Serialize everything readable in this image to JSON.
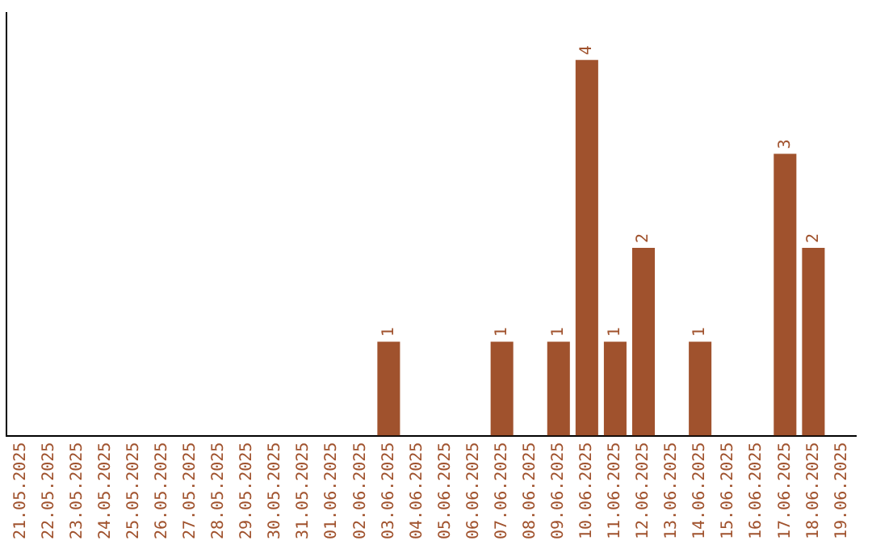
{
  "chart_data": {
    "type": "bar",
    "categories": [
      "21.05.2025",
      "22.05.2025",
      "23.05.2025",
      "24.05.2025",
      "25.05.2025",
      "26.05.2025",
      "27.05.2025",
      "28.05.2025",
      "29.05.2025",
      "30.05.2025",
      "31.05.2025",
      "01.06.2025",
      "02.06.2025",
      "03.06.2025",
      "04.06.2025",
      "05.06.2025",
      "06.06.2025",
      "07.06.2025",
      "08.06.2025",
      "09.06.2025",
      "10.06.2025",
      "11.06.2025",
      "12.06.2025",
      "13.06.2025",
      "14.06.2025",
      "15.06.2025",
      "16.06.2025",
      "17.06.2025",
      "18.06.2025",
      "19.06.2025"
    ],
    "values": [
      null,
      null,
      null,
      null,
      null,
      null,
      null,
      null,
      null,
      null,
      null,
      null,
      null,
      1,
      null,
      null,
      null,
      1,
      null,
      1,
      4,
      1,
      2,
      null,
      1,
      null,
      null,
      3,
      2,
      null
    ],
    "color": "#a0522d",
    "data_labels": true,
    "grid": false,
    "legend": false,
    "tick_labels": "x"
  }
}
